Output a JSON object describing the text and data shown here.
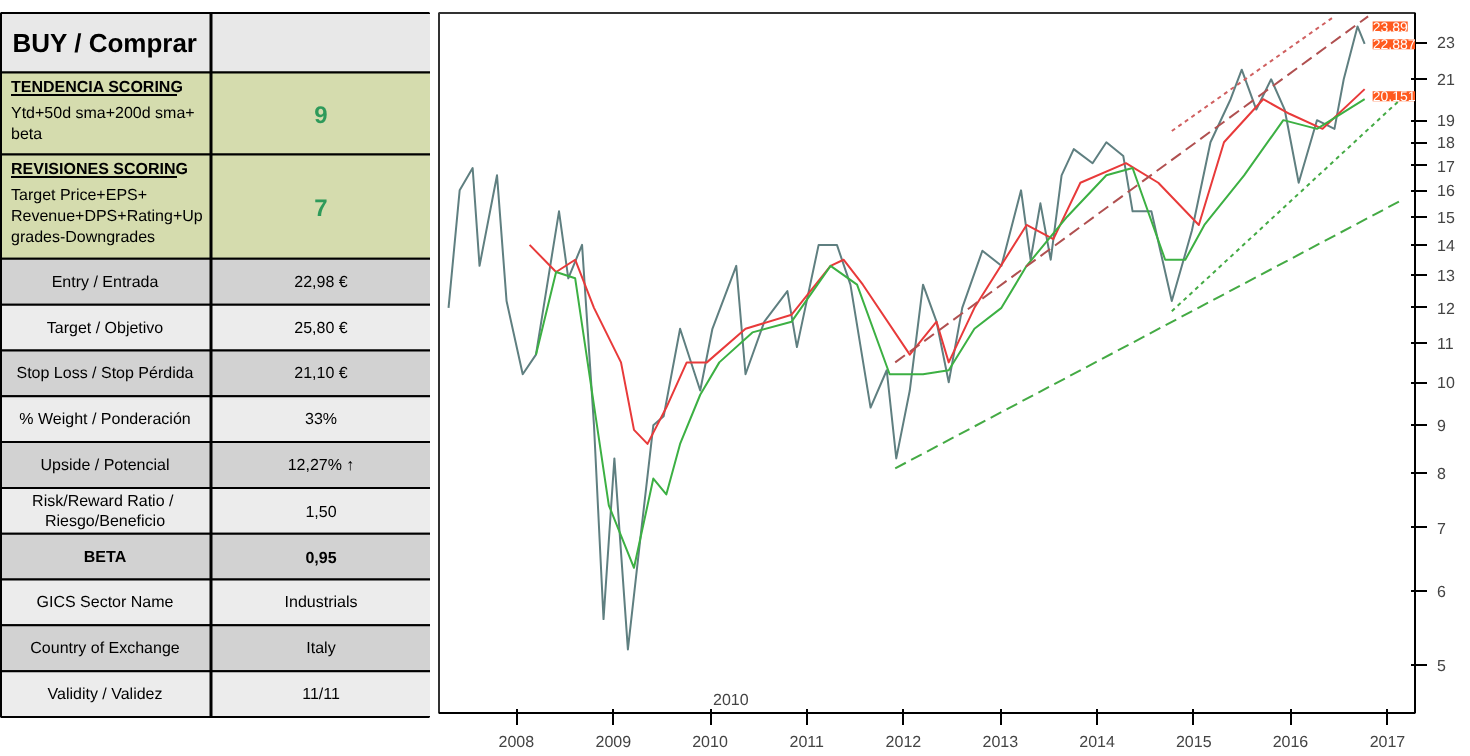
{
  "chart_data": [
    {
      "type": "other",
      "title": "BUY / Comprar",
      "annotations": [
        "TENDENCIA SCORING",
        "Ytd+50d sma+200d sma+\nbeta",
        "9",
        "REVISIONES SCORING",
        "Target Price+EPS+\nRevenue+DPS+Rating+Up\ngrades-Downgrades",
        "7",
        "Entry / Entrada",
        "22,98 €",
        "Target / Objetivo",
        "25,80 €",
        "Stop Loss / Stop Pérdida",
        "21,10 €",
        "% Weight / Ponderación",
        "33%",
        "Upside / Potencial",
        "12,27% ↑",
        "Risk/Reward  Ratio /\nRiesgo/Beneficio",
        "1,50",
        "BETA",
        "0,95",
        "GICS Sector Name",
        "Industrials",
        "Country of Exchange",
        "Italy",
        "Validity / Validez",
        "11/11"
      ]
    },
    {
      "type": "line",
      "log": true,
      "xlim": [
        "2007-03-15",
        "2017-04-15"
      ],
      "ylim": [
        4.45,
        24.7
      ],
      "xticks": [
        "2008",
        "2009",
        "2010",
        "2011",
        "2012",
        "2013",
        "2014",
        "2015",
        "2016",
        "2017"
      ],
      "yticks": [
        5,
        6,
        7,
        8,
        9,
        10,
        11,
        12,
        13,
        14,
        15,
        16,
        17,
        18,
        19,
        21,
        23
      ],
      "series": [
        {
          "color": "#5f7f80",
          "x": [
            "2007-04-20",
            "2007-06-01",
            "2007-07-20",
            "2007-08-15",
            "2007-10-20",
            "2007-11-25",
            "2008-01-25",
            "2008-03-15",
            "2008-06-10",
            "2008-07-15",
            "2008-09-05",
            "2008-10-20",
            "2008-11-25",
            "2009-01-05",
            "2009-02-25",
            "2009-04-15",
            "2009-06-01",
            "2009-07-10",
            "2009-09-10",
            "2009-11-25",
            "2010-01-10",
            "2010-04-10",
            "2010-05-15",
            "2010-07-25",
            "2010-10-20",
            "2010-11-25",
            "2011-02-15",
            "2011-04-25",
            "2011-06-15",
            "2011-08-30",
            "2011-10-30",
            "2011-12-05",
            "2012-01-25",
            "2012-03-15",
            "2012-05-05",
            "2012-06-20",
            "2012-08-10",
            "2012-10-25",
            "2013-01-05",
            "2013-03-20",
            "2013-04-25",
            "2013-06-01",
            "2013-07-10",
            "2013-08-20",
            "2013-10-05",
            "2013-12-15",
            "2014-02-05",
            "2014-04-10",
            "2014-05-15",
            "2014-07-25",
            "2014-10-10",
            "2014-12-25",
            "2015-03-05",
            "2015-05-20",
            "2015-07-01",
            "2015-08-25",
            "2015-10-20",
            "2015-12-10",
            "2016-02-01",
            "2016-04-10",
            "2016-06-15",
            "2016-07-20",
            "2016-09-10",
            "2016-10-07"
          ],
          "values": [
            12.0,
            16.0,
            16.9,
            13.3,
            16.6,
            12.2,
            10.2,
            10.7,
            15.2,
            12.9,
            14.0,
            9.0,
            5.6,
            8.3,
            5.2,
            6.9,
            9.0,
            9.2,
            11.4,
            9.8,
            11.4,
            13.3,
            10.2,
            11.6,
            12.5,
            10.9,
            14.0,
            14.0,
            12.7,
            9.4,
            10.3,
            8.3,
            9.8,
            12.7,
            11.6,
            10.0,
            12.0,
            13.8,
            13.3,
            16.0,
            13.5,
            15.5,
            13.5,
            16.6,
            17.7,
            17.1,
            18.0,
            17.4,
            15.2,
            15.2,
            12.2,
            14.5,
            18.0,
            20.0,
            21.5,
            19.5,
            21.0,
            19.5,
            16.3,
            19.0,
            18.6,
            21.0,
            23.9,
            22.9
          ]
        },
        {
          "color": "#e83a3a",
          "x": [
            "2008-02-20",
            "2008-05-30",
            "2008-08-10",
            "2008-10-20",
            "2009-01-30",
            "2009-03-20",
            "2009-05-10",
            "2009-07-20",
            "2009-10-05",
            "2009-12-20",
            "2010-05-15",
            "2010-11-05",
            "2011-04-01",
            "2011-05-20",
            "2011-08-01",
            "2012-01-25",
            "2012-05-05",
            "2012-06-20",
            "2012-09-25",
            "2013-04-10",
            "2013-07-20",
            "2013-10-30",
            "2014-04-20",
            "2014-08-20",
            "2015-01-20",
            "2015-04-25",
            "2015-09-20",
            "2015-12-28",
            "2016-05-01",
            "2016-10-07"
          ],
          "values": [
            14.0,
            13.1,
            13.5,
            12.0,
            10.5,
            8.9,
            8.6,
            9.4,
            10.5,
            10.5,
            11.4,
            11.8,
            13.3,
            13.5,
            12.7,
            10.7,
            11.6,
            10.5,
            12.0,
            14.7,
            14.2,
            16.3,
            17.1,
            16.3,
            14.7,
            18.0,
            20.0,
            19.3,
            18.6,
            20.5
          ]
        },
        {
          "color": "#3cb043",
          "x": [
            "2008-03-15",
            "2008-05-30",
            "2008-08-10",
            "2008-12-15",
            "2009-03-20",
            "2009-06-01",
            "2009-07-20",
            "2009-09-10",
            "2009-11-25",
            "2010-02-05",
            "2010-06-10",
            "2010-11-05",
            "2011-04-01",
            "2011-07-10",
            "2011-11-10",
            "2012-03-15",
            "2012-06-20",
            "2012-09-25",
            "2013-01-05",
            "2013-04-10",
            "2013-09-10",
            "2014-02-05",
            "2014-05-15",
            "2014-09-15",
            "2014-11-30",
            "2015-02-10",
            "2015-07-10",
            "2015-12-05",
            "2016-04-10",
            "2016-10-07"
          ],
          "values": [
            10.7,
            13.1,
            12.9,
            7.4,
            6.35,
            7.9,
            7.6,
            8.6,
            9.7,
            10.5,
            11.3,
            11.6,
            13.3,
            12.7,
            10.2,
            10.2,
            10.3,
            11.4,
            12.0,
            13.3,
            15.0,
            16.6,
            16.9,
            13.5,
            13.5,
            14.7,
            16.6,
            19.0,
            18.6,
            20.0
          ]
        },
        {
          "color": "#44aa44",
          "line_style": "dashed",
          "x": [
            "2011-12-01",
            "2017-02-20"
          ],
          "values": [
            8.1,
            15.6
          ]
        },
        {
          "color": "#44aa44",
          "line_style": "dotted",
          "x": [
            "2014-10-10",
            "2017-02-20"
          ],
          "values": [
            11.9,
            20.0
          ]
        },
        {
          "color": "#b05050",
          "line_style": "dashed",
          "x": [
            "2011-12-01",
            "2016-10-20"
          ],
          "values": [
            10.5,
            24.5
          ]
        },
        {
          "color": "#d06060",
          "line_style": "dotted",
          "x": [
            "2014-10-10",
            "2016-06-15"
          ],
          "values": [
            18.5,
            24.5
          ]
        }
      ],
      "annotations": [
        {
          "text": "23,89",
          "x": "2016-10-07",
          "y": 23.89
        },
        {
          "text": "22,887",
          "x": "2016-10-07",
          "y": 22.887
        },
        {
          "text": "20,151",
          "x": "2016-10-07",
          "y": 20.151
        },
        "2010"
      ]
    }
  ]
}
